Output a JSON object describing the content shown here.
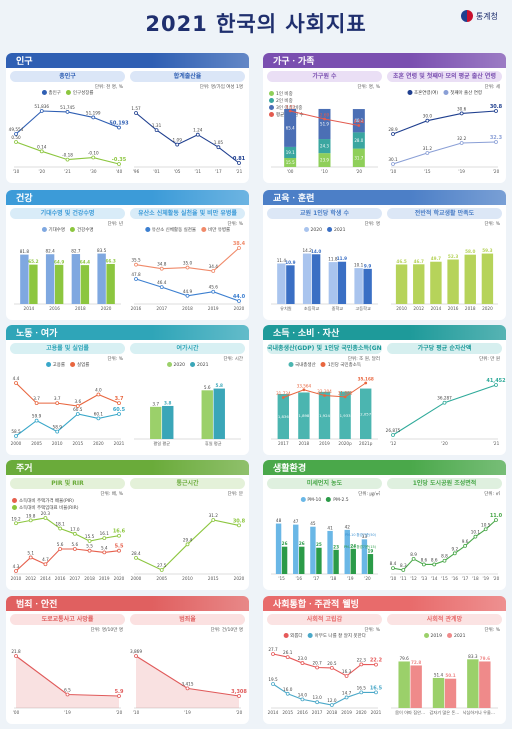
{
  "header": {
    "title": "2021 한국의 사회지표",
    "org": "통계청"
  },
  "colors": {
    "population": "#2f5fb3",
    "family": "#7a4fb0",
    "health": "#3c9bd8",
    "education": "#4c7fc7",
    "labor": "#2fa5b8",
    "income": "#1e9a9a",
    "housing": "#6aab3a",
    "environment": "#4aa84a",
    "safety": "#e06060",
    "social": "#e86b6b"
  },
  "sections": {
    "population": "인구",
    "family": "가구ㆍ가족",
    "health": "건강",
    "education": "교육ㆍ훈련",
    "labor": "노동ㆍ여가",
    "income": "소득ㆍ소비ㆍ자산",
    "housing": "주거",
    "environment": "생활환경",
    "safety": "범죄ㆍ안전",
    "social": "사회통합ㆍ주관적 웰빙"
  },
  "chart_data": [
    {
      "id": "total_pop",
      "type": "line",
      "title": "총인구",
      "unit": "단위: 천 명, %",
      "x": [
        "'10",
        "'20",
        "'21",
        "'30",
        "'40"
      ],
      "series": [
        {
          "name": "총인구",
          "values": [
            49554,
            51836,
            51745,
            51199,
            50193
          ],
          "labels": [
            "49,554",
            "51,836",
            "51,745",
            "51,199",
            "50,193"
          ]
        },
        {
          "name": "인구성장률",
          "values": [
            0.5,
            0.14,
            -0.18,
            -0.1,
            -0.35
          ],
          "labels": [
            "0.50",
            "0.14",
            "-0.18",
            "-0.10",
            "-0.35"
          ]
        }
      ]
    },
    {
      "id": "fertility",
      "type": "line",
      "title": "합계출산율",
      "unit": "단위: 명/가임 여성 1명",
      "x": [
        "'96",
        "'01",
        "'05",
        "'11",
        "'17",
        "'21"
      ],
      "series": [
        {
          "name": "합계출산율",
          "values": [
            1.57,
            1.31,
            1.09,
            1.24,
            1.05,
            0.81
          ],
          "labels": [
            "1.57",
            "1.31",
            "1.09",
            "1.24",
            "1.05",
            "0.81"
          ]
        }
      ]
    },
    {
      "id": "household",
      "type": "bar",
      "title": "가구원 수",
      "unit": "단위: 명, %",
      "categories": [
        "'00",
        "'10",
        "'20"
      ],
      "series": [
        {
          "name": "1인 비중",
          "values": [
            15.5,
            23.9,
            31.7
          ]
        },
        {
          "name": "2인 비중",
          "values": [
            19.1,
            24.3,
            28.0
          ]
        },
        {
          "name": "3인 이상 비중",
          "values": [
            65.4,
            51.9,
            40.2
          ]
        },
        {
          "name": "평균 가구원 수",
          "values": [
            3.12,
            2.69,
            2.34
          ],
          "labels": [
            "3.12",
            "2.69",
            "2.34"
          ]
        }
      ]
    },
    {
      "id": "marriage_age",
      "type": "line",
      "title": "초혼 연령 및 첫째아 모의 평균 출산 연령",
      "unit": "단위: 세",
      "x": [
        "'10",
        "'15",
        "'19",
        "'20"
      ],
      "series": [
        {
          "name": "초혼연령(여)",
          "values": [
            28.9,
            30.0,
            30.6,
            30.8
          ],
          "labels": [
            "28.9",
            "30.0",
            "30.6",
            "30.8"
          ]
        },
        {
          "name": "첫째아 출산 연령",
          "values": [
            30.1,
            31.2,
            32.2,
            32.3
          ],
          "labels": [
            "30.1",
            "31.2",
            "32.2",
            "32.3"
          ]
        }
      ]
    },
    {
      "id": "life_exp",
      "type": "bar",
      "title": "기대수명 및 건강수명",
      "unit": "단위: 년",
      "categories": [
        "2014",
        "2016",
        "2018",
        "2020"
      ],
      "series": [
        {
          "name": "기대수명",
          "values": [
            81.8,
            82.4,
            82.7,
            83.5
          ],
          "labels": [
            "81.8",
            "82.4",
            "82.7",
            "83.5"
          ]
        },
        {
          "name": "건강수명",
          "values": [
            65.2,
            64.9,
            64.4,
            66.3
          ],
          "labels": [
            "65.2",
            "64.9",
            "64.4",
            "66.3"
          ]
        }
      ]
    },
    {
      "id": "exercise",
      "type": "line",
      "title": "유산소 신체활동 실천율 및 비만 유병률",
      "unit": "단위: %",
      "x": [
        "2016",
        "2017",
        "2018",
        "2019",
        "2020"
      ],
      "series": [
        {
          "name": "유산소 신체활동 실천율",
          "values": [
            47.8,
            46.4,
            44.9,
            45.6,
            44.0
          ],
          "labels": [
            "47.8",
            "46.4",
            "44.9",
            "45.6",
            "44.0"
          ]
        },
        {
          "name": "비만 유병률",
          "values": [
            35.5,
            34.8,
            35.0,
            34.4,
            38.4
          ],
          "labels": [
            "35.5",
            "34.8",
            "35.0",
            "34.4",
            "38.4"
          ]
        }
      ]
    },
    {
      "id": "students_per_teacher",
      "type": "bar",
      "title": "교원 1인당 학생 수",
      "unit": "단위: 명",
      "categories": [
        "유치원",
        "초등학교",
        "중학교",
        "고등학교"
      ],
      "series": [
        {
          "name": "2020",
          "values": [
            11.4,
            14.2,
            11.8,
            10.1
          ],
          "labels": [
            "11.4",
            "14.2",
            "11.8",
            "10.1"
          ]
        },
        {
          "name": "2021",
          "values": [
            10.9,
            14.0,
            11.9,
            9.9
          ],
          "labels": [
            "10.9",
            "14.0",
            "11.9",
            "9.9"
          ]
        }
      ]
    },
    {
      "id": "school_satisfaction",
      "type": "bar",
      "title": "전반적 학교생활 만족도",
      "unit": "단위: %",
      "categories": [
        "2010",
        "2012",
        "2014",
        "2016",
        "2018",
        "2020"
      ],
      "series": [
        {
          "name": "만족도",
          "values": [
            46.5,
            46.7,
            49.7,
            52.3,
            58.0,
            59.3
          ],
          "labels": [
            "46.5",
            "46.7",
            "49.7",
            "52.3",
            "58.0",
            "59.3"
          ]
        }
      ]
    },
    {
      "id": "employment",
      "type": "line",
      "title": "고용률 및 실업률",
      "unit": "단위: %",
      "x": [
        "2000",
        "2005",
        "2010",
        "2015",
        "2020",
        "2021"
      ],
      "series": [
        {
          "name": "고용률",
          "values": [
            58.5,
            59.9,
            58.9,
            60.5,
            60.1,
            60.5
          ],
          "labels": [
            "58.5",
            "59.9",
            "58.9",
            "60.5",
            "60.1",
            "60.5"
          ]
        },
        {
          "name": "실업률",
          "values": [
            4.4,
            3.7,
            3.7,
            3.6,
            4.0,
            3.7
          ],
          "labels": [
            "4.4",
            "3.7",
            "3.7",
            "3.6",
            "4.0",
            "3.7"
          ]
        }
      ]
    },
    {
      "id": "leisure",
      "type": "bar",
      "title": "여가시간",
      "unit": "단위: 시간",
      "categories": [
        "평일 평균",
        "휴일 평균"
      ],
      "series": [
        {
          "name": "2020",
          "values": [
            3.7,
            5.6
          ],
          "labels": [
            "3.7",
            "5.6"
          ]
        },
        {
          "name": "2021",
          "values": [
            3.8,
            5.8
          ],
          "labels": [
            "3.8",
            "5.8"
          ]
        }
      ]
    },
    {
      "id": "gdp_gni",
      "type": "bar",
      "title": "국내총생산(GDP) 및 1인당 국민총소득(GNI)",
      "unit": "단위: 조 원, 달러",
      "categories": [
        "2017",
        "2018",
        "2019",
        "2020p",
        "2021p"
      ],
      "series": [
        {
          "name": "국내총생산",
          "values": [
            1836,
            1898,
            1924,
            1933,
            2057
          ],
          "labels": [
            "1,836",
            "1,898",
            "1,924",
            "1,933",
            "2,057"
          ]
        },
        {
          "name": "1인당 국민총소득",
          "values": [
            31734,
            33564,
            32204,
            31881,
            35168
          ],
          "labels": [
            "31,734",
            "33,564",
            "32,204",
            "31,881",
            "35,168"
          ]
        }
      ]
    },
    {
      "id": "net_assets",
      "type": "line",
      "title": "가구당 평균 순자산액",
      "unit": "단위: 만 원",
      "x": [
        "'12",
        "'20",
        "'21"
      ],
      "series": [
        {
          "name": "순자산액",
          "values": [
            26875,
            36287,
            41452
          ],
          "labels": [
            "26,875",
            "36,287",
            "41,452"
          ]
        }
      ]
    },
    {
      "id": "pir_rir",
      "type": "line",
      "title": "PIR 및 RIR",
      "unit": "단위: 배, %",
      "x": [
        "2010",
        "2012",
        "2014",
        "2016",
        "2017",
        "2018",
        "2019",
        "2020"
      ],
      "series": [
        {
          "name": "소득대비 주택가격 배율(PIR)",
          "values": [
            4.3,
            5.1,
            4.7,
            5.6,
            5.6,
            5.5,
            5.4,
            5.5
          ],
          "labels": [
            "4.3",
            "5.1",
            "4.7",
            "5.6",
            "5.6",
            "5.5",
            "5.4",
            "5.5"
          ]
        },
        {
          "name": "소득대비 주택임대료 비율(RIR)",
          "values": [
            19.2,
            19.8,
            20.3,
            18.1,
            17.0,
            15.5,
            16.1,
            16.6
          ],
          "labels": [
            "19.2",
            "19.8",
            "20.3",
            "18.1",
            "17.0",
            "15.5",
            "16.1",
            "16.6"
          ]
        }
      ]
    },
    {
      "id": "commute",
      "type": "line",
      "title": "통근시간",
      "unit": "단위: 분",
      "x": [
        "2000",
        "2005",
        "2010",
        "2015",
        "2020"
      ],
      "series": [
        {
          "name": "통근시간",
          "values": [
            28.4,
            27.5,
            29.4,
            31.2,
            30.8
          ],
          "labels": [
            "28.4",
            "27.5",
            "29.4",
            "31.2",
            "30.8"
          ]
        }
      ]
    },
    {
      "id": "dust",
      "type": "bar",
      "title": "미세먼지 농도",
      "unit": "단위: ㎍/㎥",
      "categories": [
        "'15",
        "'16",
        "'17",
        "'18",
        "'19",
        "'20"
      ],
      "series": [
        {
          "name": "PM-10",
          "values": [
            48,
            47,
            45,
            41,
            42,
            33
          ],
          "labels": [
            "48",
            "47",
            "45",
            "41",
            "42",
            "33"
          ]
        },
        {
          "name": "PM-2.5",
          "values": [
            26,
            26,
            25,
            23,
            24,
            19
          ],
          "labels": [
            "26",
            "26",
            "25",
            "23",
            "24",
            "19"
          ]
        }
      ],
      "annotations": [
        "PM-10 환경기준(50)",
        "PM-2.5 환경기준(15)"
      ]
    },
    {
      "id": "park_area",
      "type": "line",
      "title": "1인당 도시공원 조성면적",
      "unit": "단위: ㎡",
      "x": [
        "'10",
        "'11",
        "'12",
        "'13",
        "'14",
        "'15",
        "'16",
        "'17",
        "'18",
        "'19",
        "'20"
      ],
      "series": [
        {
          "name": "도시공원 조성면적",
          "values": [
            8.4,
            8.3,
            8.9,
            8.6,
            8.6,
            8.8,
            9.2,
            9.6,
            10.1,
            10.5,
            11.0
          ],
          "labels": [
            "8.4",
            "8.3",
            "8.9",
            "8.6",
            "8.6",
            "8.8",
            "9.2",
            "9.6",
            "10.1",
            "10.5",
            "11.0"
          ]
        }
      ]
    },
    {
      "id": "traffic_death",
      "type": "area",
      "title": "도로교통사고 사망률",
      "unit": "단위: 명/10만 명",
      "x": [
        "'00",
        "'19",
        "'20"
      ],
      "series": [
        {
          "name": "사망률",
          "values": [
            21.8,
            6.5,
            5.9
          ],
          "labels": [
            "21.8",
            "6.5",
            "5.9"
          ]
        }
      ]
    },
    {
      "id": "crime",
      "type": "area",
      "title": "범죄율",
      "unit": "단위: 건/10만 명",
      "x": [
        "'10",
        "'19",
        "'20"
      ],
      "series": [
        {
          "name": "범죄율",
          "values": [
            3869,
            3415,
            3308
          ],
          "labels": [
            "3,869",
            "3,415",
            "3,308"
          ]
        }
      ]
    },
    {
      "id": "loneliness",
      "type": "line",
      "title": "사회적 고립감",
      "unit": "단위: %",
      "x": [
        "2014",
        "2015",
        "2016",
        "2017",
        "2018",
        "2019",
        "2020",
        "2021"
      ],
      "series": [
        {
          "name": "외롭다",
          "values": [
            27.7,
            26.1,
            23.0,
            20.7,
            20.5,
            16.3,
            22.3,
            22.2
          ],
          "labels": [
            "27.7",
            "26.1",
            "23.0",
            "20.7",
            "20.5",
            "16.3",
            "22.3",
            "22.2"
          ]
        },
        {
          "name": "아무도 나를 잘 알지 못한다",
          "values": [
            19.5,
            16.0,
            14.0,
            13.0,
            12.0,
            14.7,
            16.5,
            16.5
          ],
          "labels": [
            "19.5",
            "16.0",
            "14.0",
            "13.0",
            "12.0",
            "14.7",
            "16.5",
            "16.5"
          ]
        }
      ]
    },
    {
      "id": "relations",
      "type": "bar",
      "title": "사회적 관계망",
      "unit": "단위: %",
      "categories": [
        "몸이 아파 집안일을 부탁해야 할 경우",
        "갑자기 많은 돈을 빌려야 할 경우",
        "낙심하거나 우울해서 이야기 상대가 필요한 경우"
      ],
      "series": [
        {
          "name": "2019",
          "values": [
            79.6,
            51.4,
            83.3
          ],
          "labels": [
            "79.6",
            "51.4",
            "83.3"
          ]
        },
        {
          "name": "2021",
          "values": [
            72.8,
            50.1,
            79.6
          ],
          "labels": [
            "72.8",
            "50.1",
            "79.6"
          ]
        }
      ]
    }
  ]
}
